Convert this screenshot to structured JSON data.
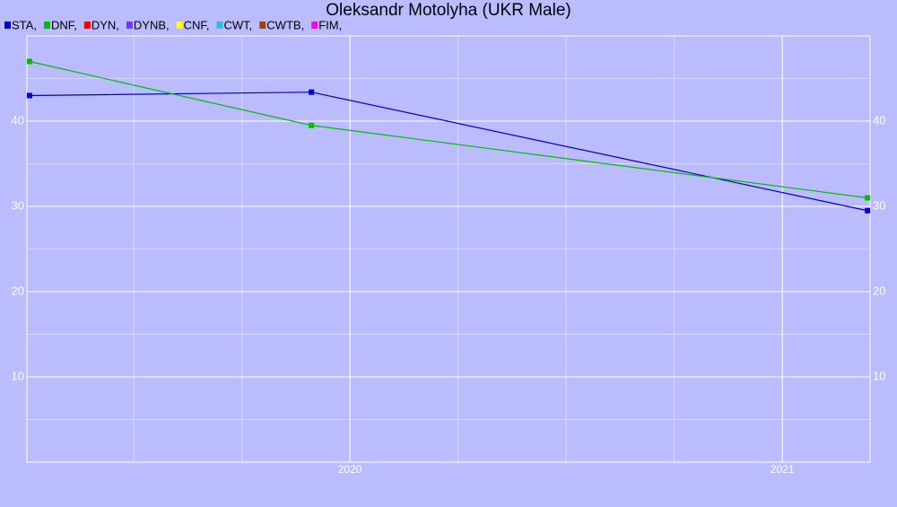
{
  "chart_data": {
    "type": "line",
    "title": "Oleksandr Motolyha (UKR Male)",
    "x": [
      2019.259,
      2019.911,
      2021.197
    ],
    "series": [
      {
        "name": "STA,",
        "color": "#0000cc",
        "values": [
          43.0,
          43.4,
          29.5
        ]
      },
      {
        "name": "DNF,",
        "color": "#00bb00",
        "values": [
          47.0,
          39.5,
          31.0
        ]
      },
      {
        "name": "DYN,",
        "color": "#ee0000",
        "values": [
          null,
          null,
          null
        ]
      },
      {
        "name": "DYNB,",
        "color": "#7733ff",
        "values": [
          null,
          null,
          null
        ]
      },
      {
        "name": "CNF,",
        "color": "#ffff00",
        "values": [
          null,
          null,
          null
        ]
      },
      {
        "name": "CWT,",
        "color": "#33bbdd",
        "values": [
          null,
          null,
          null
        ]
      },
      {
        "name": "CWTB,",
        "color": "#994400",
        "values": [
          null,
          null,
          null
        ]
      },
      {
        "name": "FIM,",
        "color": "#ff00ff",
        "values": [
          null,
          null,
          null
        ]
      }
    ],
    "xlim": [
      2019.253,
      2021.203
    ],
    "xticks": [
      2020,
      2021
    ],
    "ylim": [
      0,
      50
    ],
    "yticks": [
      10,
      20,
      30,
      40
    ],
    "grid": true
  }
}
